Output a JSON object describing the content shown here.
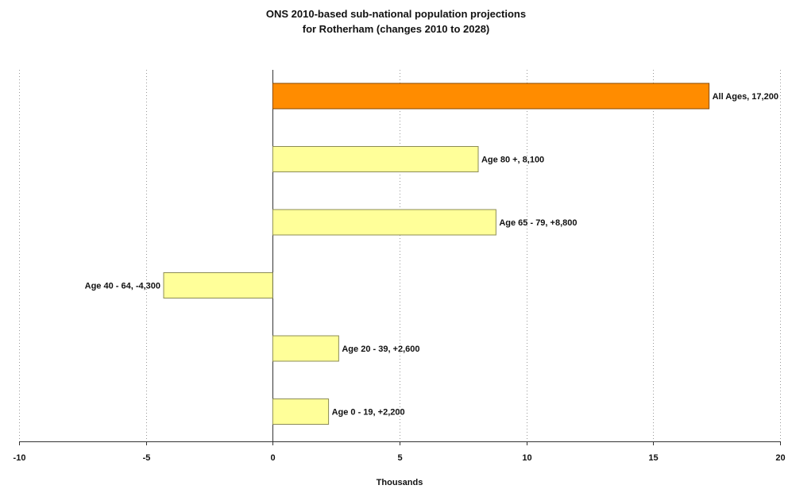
{
  "chart_data": {
    "type": "bar",
    "orientation": "horizontal",
    "title_lines": [
      "ONS 2010-based sub-national population projections",
      "for Rotherham (changes 2010 to 2028)"
    ],
    "xlabel": "Thousands",
    "ylabel": "",
    "xlim": [
      -10,
      20
    ],
    "xticks": [
      -10,
      -5,
      0,
      5,
      10,
      15,
      20
    ],
    "xtick_labels": [
      "-10",
      "-5",
      "0",
      "5",
      "10",
      "15",
      "20"
    ],
    "grid": "vertical dotted",
    "legend": "none",
    "bars": [
      {
        "category": "All Ages",
        "value": 17.2,
        "label": "All Ages, 17,200",
        "color": "#ff8c00"
      },
      {
        "category": "Age 80 +",
        "value": 8.1,
        "label": "Age 80 +, 8,100",
        "color": "#ffff99"
      },
      {
        "category": "Age 65 - 79",
        "value": 8.8,
        "label": "Age 65 - 79, +8,800",
        "color": "#ffff99"
      },
      {
        "category": "Age 40 - 64",
        "value": -4.3,
        "label": "Age 40 - 64, -4,300",
        "color": "#ffff99"
      },
      {
        "category": "Age 20 - 39",
        "value": 2.6,
        "label": "Age 20 - 39, +2,600",
        "color": "#ffff99"
      },
      {
        "category": "Age 0 - 19",
        "value": 2.2,
        "label": "Age 0 - 19, +2,200",
        "color": "#ffff99"
      }
    ],
    "colors": {
      "bar_border": "#8c8c55",
      "highlight_border": "#8a4a00",
      "axis": "#333333",
      "grid": "#999999"
    }
  }
}
